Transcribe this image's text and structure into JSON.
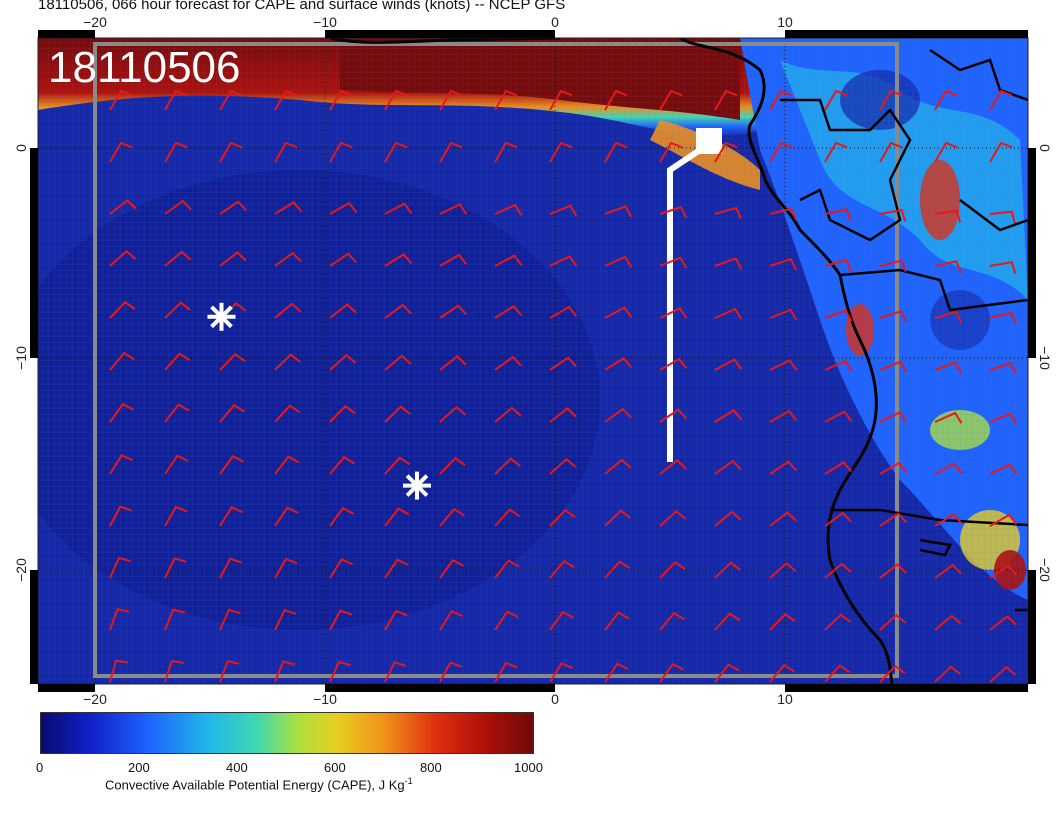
{
  "title": "18110506, 066 hour forecast for CAPE and surface winds (knots) -- NCEP GFS",
  "stamp": "18110506",
  "axes": {
    "x_ticks_top": [
      "−20",
      "−10",
      "0",
      "10"
    ],
    "x_ticks_bottom": [
      "−20",
      "−10",
      "0",
      "10"
    ],
    "y_ticks_left": [
      "0",
      "−10",
      "−20"
    ],
    "y_ticks_right": [
      "0",
      "−10",
      "−20"
    ]
  },
  "colorbar": {
    "labels": [
      "0",
      "200",
      "400",
      "600",
      "800",
      "1000"
    ],
    "title": "Convective Available Potential Energy (CAPE), J Kg",
    "title_sup": "-1",
    "range": [
      0,
      1000
    ],
    "colors": [
      "#0a0a6e",
      "#1020c8",
      "#1e64ff",
      "#20b8e8",
      "#40d8b0",
      "#a8e040",
      "#e8d020",
      "#f09018",
      "#e03010",
      "#b01008",
      "#6e0a08"
    ]
  },
  "colors": {
    "ocean": "#1428a8",
    "high_cape": "#7a0a06",
    "wind_barb": "#e81818",
    "coastline": "#000000",
    "flight_track": "#ffffff"
  },
  "markers": [
    {
      "name": "asterisk-marker-1",
      "lon": -14.5,
      "lat": -8
    },
    {
      "name": "asterisk-marker-2",
      "lon": -6,
      "lat": -16
    }
  ]
}
